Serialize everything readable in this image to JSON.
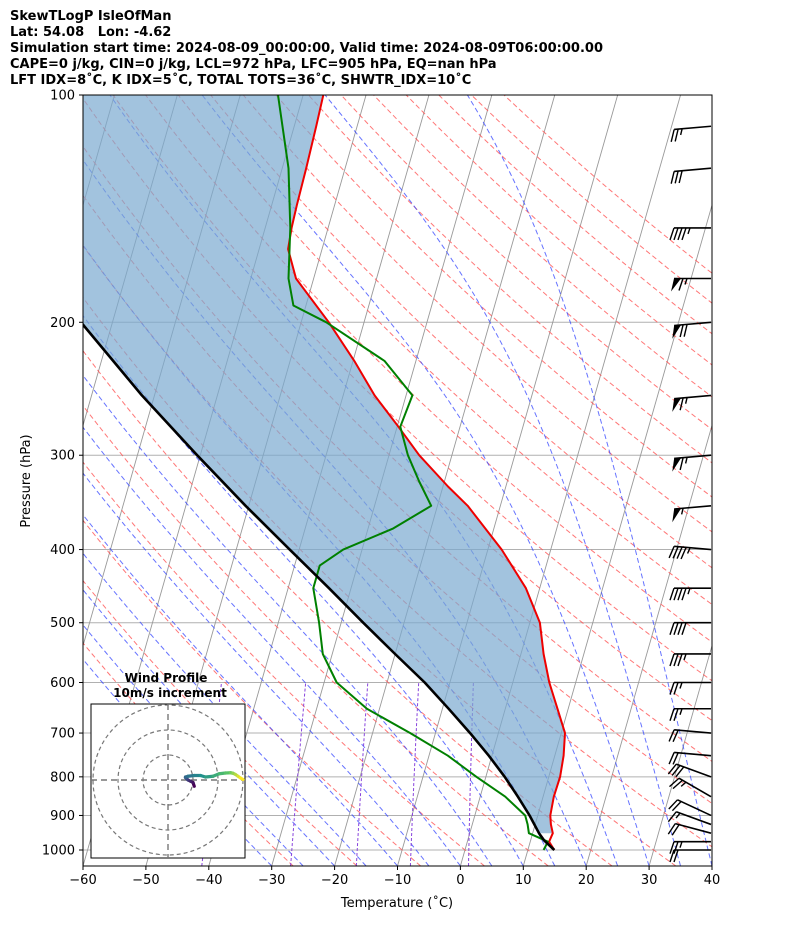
{
  "header": {
    "line1": "SkewTLogP IsleOfMan",
    "line2": "Lat: 54.08   Lon: -4.62",
    "line3": "Simulation start time: 2024-08-09_00:00:00, Valid time: 2024-08-09T06:00:00.00",
    "line4": "CAPE=0 j/kg, CIN=0 j/kg, LCL=972 hPa, LFC=905 hPa, EQ=nan hPa",
    "line5": "LFT IDX=8˚C, K IDX=5˚C, TOTAL TOTS=36˚C, SHWTR_IDX=10˚C"
  },
  "chart_data": {
    "type": "line",
    "title": "",
    "xlabel": "Temperature (˚C)",
    "ylabel": "Pressure (hPa)",
    "xlim": [
      -60,
      40
    ],
    "ylim": [
      1050,
      100
    ],
    "yscale": "log",
    "skew": 35,
    "x_ticks": [
      -60,
      -50,
      -40,
      -30,
      -20,
      -10,
      0,
      10,
      20,
      30,
      40
    ],
    "y_ticks": [
      1000,
      900,
      800,
      700,
      600,
      500,
      400,
      300,
      200,
      100
    ],
    "colors": {
      "temperature": "#ee0000",
      "dewpoint": "#008000",
      "parcel": "#000000",
      "cape_fill": "#7aa9d0",
      "dry_adiabat": "#ff5555",
      "moist_adiabat": "#3344ff",
      "mixing_ratio": "#8844dd",
      "isotherm": "#999999"
    },
    "series": [
      {
        "key": "temperature",
        "p": [
          1000,
          975,
          950,
          925,
          900,
          850,
          800,
          750,
          700,
          650,
          600,
          550,
          500,
          450,
          400,
          350,
          330,
          300,
          275,
          250,
          225,
          200,
          175,
          160,
          150,
          140,
          125,
          110,
          100
        ],
        "t": [
          14.2,
          13.0,
          13.2,
          12.5,
          12.0,
          11.7,
          11.8,
          11.4,
          10.6,
          8.3,
          5.8,
          3.6,
          1.6,
          -2.2,
          -7.8,
          -15.2,
          -19.2,
          -25.2,
          -29.8,
          -35.0,
          -39.8,
          -45.6,
          -52.8,
          -55.4,
          -55.8,
          -56.0,
          -56.2,
          -56.5,
          -56.8
        ]
      },
      {
        "key": "dewpoint",
        "p": [
          1000,
          975,
          950,
          925,
          900,
          850,
          800,
          750,
          700,
          650,
          600,
          550,
          500,
          450,
          420,
          400,
          375,
          350,
          325,
          300,
          275,
          250,
          225,
          200,
          190,
          175,
          150,
          125,
          100
        ],
        "t": [
          12.5,
          12.8,
          9.4,
          8.8,
          8.0,
          4.0,
          -1.5,
          -7.0,
          -14.0,
          -22.0,
          -28.0,
          -31.5,
          -33.5,
          -36.0,
          -36.0,
          -33.0,
          -26.0,
          -21.0,
          -24.0,
          -27.0,
          -29.5,
          -29.0,
          -35.0,
          -46.0,
          -52.0,
          -54.0,
          -56.0,
          -59.0,
          -64.0
        ]
      },
      {
        "key": "parcel",
        "p": [
          1000,
          972,
          950,
          900,
          850,
          800,
          750,
          700,
          650,
          600,
          550,
          500,
          450,
          400,
          350,
          300,
          250,
          200,
          150,
          100
        ],
        "t": [
          14.2,
          12.2,
          11.0,
          8.7,
          6.0,
          3.0,
          -0.5,
          -4.5,
          -9.0,
          -14.0,
          -20.0,
          -26.5,
          -33.5,
          -41.5,
          -50.5,
          -60.5,
          -72.0,
          -85.0,
          -102.0,
          -125.0
        ]
      }
    ],
    "wind_barbs": {
      "p": [
        1000,
        975,
        950,
        925,
        900,
        850,
        800,
        750,
        700,
        650,
        600,
        550,
        500,
        450,
        400,
        350,
        300,
        250,
        200,
        175,
        150,
        125,
        110
      ],
      "speed_kt": [
        20,
        25,
        20,
        15,
        20,
        25,
        30,
        20,
        20,
        25,
        25,
        35,
        40,
        45,
        45,
        55,
        65,
        65,
        70,
        65,
        45,
        30,
        25
      ],
      "dir_deg": [
        270,
        270,
        285,
        290,
        295,
        300,
        290,
        275,
        275,
        270,
        270,
        270,
        270,
        270,
        275,
        265,
        265,
        265,
        265,
        270,
        270,
        265,
        265
      ]
    },
    "hodograph": {
      "title": "Wind Profile",
      "subtitle": "10m/s increment",
      "rings_ms": [
        10,
        20,
        30
      ],
      "u": [
        10.5,
        10.0,
        9.0,
        8.0,
        7.5,
        7.0,
        7.0,
        8.0,
        10.5,
        13.0,
        15.0,
        18.0,
        20.5,
        23.0,
        25.0,
        26.0,
        27.0,
        28.0,
        29.0,
        30.0
      ],
      "v": [
        -2.5,
        -1.0,
        -0.5,
        0.0,
        0.5,
        1.0,
        1.2,
        1.5,
        1.8,
        1.8,
        1.2,
        1.5,
        2.5,
        2.8,
        2.9,
        2.7,
        2.2,
        1.5,
        0.8,
        0.2
      ]
    }
  }
}
